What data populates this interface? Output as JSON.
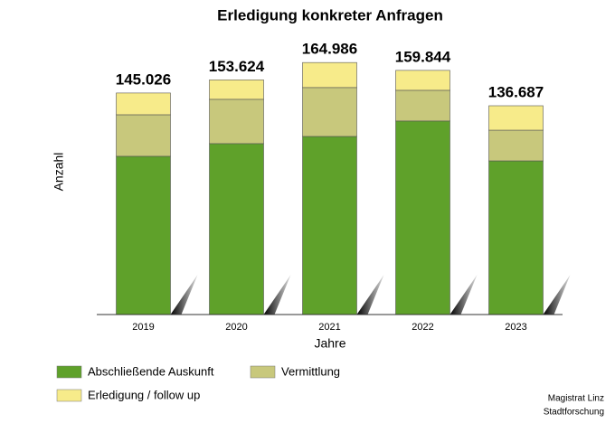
{
  "chart_data": {
    "type": "stacked_bar",
    "title": "Erledigung konkreter Anfragen",
    "x_label": "Jahre",
    "y_label": "Anzahl",
    "categories": [
      "2019",
      "2020",
      "2021",
      "2022",
      "2023"
    ],
    "series": [
      {
        "name": "Abschließende Auskunft",
        "color": "#5fa12a",
        "values": [
          103600,
          111900,
          116600,
          126700,
          100600
        ]
      },
      {
        "name": "Vermittlung",
        "color": "#c8c87c",
        "values": [
          27200,
          29000,
          32000,
          20100,
          20100
        ]
      },
      {
        "name": "Erledigung / follow up",
        "color": "#f7eb8a",
        "values": [
          14226,
          12724,
          16386,
          13044,
          15987
        ]
      }
    ],
    "totals": {
      "values": [
        145026,
        153624,
        164986,
        159844,
        136687
      ],
      "value_labels": [
        "145.026",
        "153.624",
        "164.986",
        "159.844",
        "136.687"
      ]
    },
    "ylim": [
      0,
      200000
    ],
    "legend": "bottom",
    "source": [
      "Magistrat Linz",
      "Stadtforschung"
    ]
  }
}
